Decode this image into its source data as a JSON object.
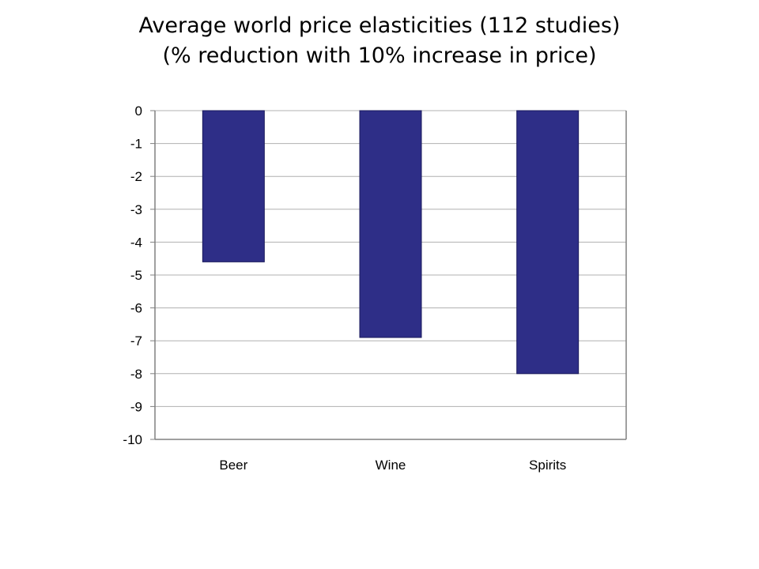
{
  "chart_title": {
    "line1": "Average world price elasticities (112 studies)",
    "line2": "(% reduction with 10% increase in price)"
  },
  "colors": {
    "bar": "#2e2e87",
    "grid": "#b0b0b0",
    "axis": "#808080",
    "plot_background": "#ffffff"
  },
  "chart_data": {
    "type": "bar",
    "title": "Average world price elasticities (112 studies) (% reduction with 10% increase in price)",
    "categories": [
      "Beer",
      "Wine",
      "Spirits"
    ],
    "values": [
      -4.6,
      -6.9,
      -8.0
    ],
    "ylim": [
      -10,
      0
    ],
    "yticks": [
      "0",
      "-1",
      "-2",
      "-3",
      "-4",
      "-5",
      "-6",
      "-7",
      "-8",
      "-9",
      "-10"
    ],
    "xlabel": "",
    "ylabel": "",
    "grid": true,
    "legend": "none"
  }
}
